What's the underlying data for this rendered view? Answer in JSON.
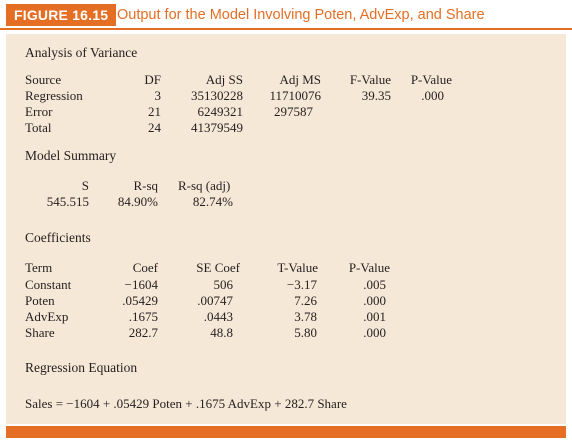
{
  "figure": {
    "label": "FIGURE 16.15",
    "caption": "Output for the Model Involving Poten, AdvExp, and Share"
  },
  "anova": {
    "heading": "Analysis of Variance",
    "headers": [
      "Source",
      "DF",
      "Adj SS",
      "Adj MS",
      "F-Value",
      "P-Value"
    ],
    "rows": [
      {
        "source": "Regression",
        "df": "3",
        "adj_ss": "35130228",
        "adj_ms": "11710076",
        "f_value": "39.35",
        "p_value": ".000"
      },
      {
        "source": "Error",
        "df": "21",
        "adj_ss": "6249321",
        "adj_ms": "297587",
        "f_value": "",
        "p_value": ""
      },
      {
        "source": "Total",
        "df": "24",
        "adj_ss": "41379549",
        "adj_ms": "",
        "f_value": "",
        "p_value": ""
      }
    ]
  },
  "model_summary": {
    "heading": "Model Summary",
    "headers": [
      "S",
      "R-sq",
      "R-sq (adj)"
    ],
    "values": [
      "545.515",
      "84.90%",
      "82.74%"
    ]
  },
  "coefficients": {
    "heading": "Coefficients",
    "headers": [
      "Term",
      "Coef",
      "SE Coef",
      "T-Value",
      "P-Value"
    ],
    "rows": [
      {
        "term": "Constant",
        "coef": "−1604",
        "se_coef": "506",
        "t_value": "−3.17",
        "p_value": ".005"
      },
      {
        "term": "Poten",
        "coef": ".05429",
        "se_coef": ".00747",
        "t_value": "7.26",
        "p_value": ".000"
      },
      {
        "term": "AdvExp",
        "coef": ".1675",
        "se_coef": ".0443",
        "t_value": "3.78",
        "p_value": ".001"
      },
      {
        "term": "Share",
        "coef": "282.7",
        "se_coef": "48.8",
        "t_value": "5.80",
        "p_value": ".000"
      }
    ]
  },
  "regression_equation": {
    "heading": "Regression Equation",
    "equation": "Sales = −1604 + .05429 Poten + .1675 AdvExp + 282.7 Share"
  },
  "colors": {
    "accent": "#e46e24",
    "panel_background": "#f6e8d6",
    "text": "#231f20"
  }
}
